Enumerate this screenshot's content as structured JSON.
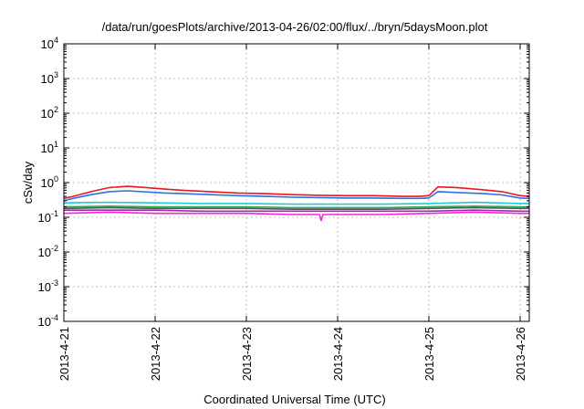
{
  "chart_data": {
    "type": "line",
    "title": "/data/run/goesPlots/archive/2013-04-26/02:00/flux/../bryn/5daysMoon.plot",
    "xlabel": "Coordinated Universal Time (UTC)",
    "ylabel": "cSv/day",
    "yscale": "log",
    "ylim": [
      0.0001,
      10000
    ],
    "xlim_days": [
      0,
      5.1
    ],
    "grid": true,
    "yticks": [
      {
        "value": 0.0001,
        "base": "10",
        "exp": "-4"
      },
      {
        "value": 0.001,
        "base": "10",
        "exp": "-3"
      },
      {
        "value": 0.01,
        "base": "10",
        "exp": "-2"
      },
      {
        "value": 0.1,
        "base": "10",
        "exp": "-1"
      },
      {
        "value": 1,
        "base": "10",
        "exp": "0"
      },
      {
        "value": 10,
        "base": "10",
        "exp": "1"
      },
      {
        "value": 100,
        "base": "10",
        "exp": "2"
      },
      {
        "value": 1000,
        "base": "10",
        "exp": "3"
      },
      {
        "value": 10000,
        "base": "10",
        "exp": "4"
      }
    ],
    "xticks": [
      {
        "day": 0,
        "label": "2013-4-21"
      },
      {
        "day": 1,
        "label": "2013-4-22"
      },
      {
        "day": 2,
        "label": "2013-4-23"
      },
      {
        "day": 3,
        "label": "2013-4-24"
      },
      {
        "day": 4,
        "label": "2013-4-25"
      },
      {
        "day": 5,
        "label": "2013-4-26"
      }
    ],
    "series": [
      {
        "color": "#e8191c",
        "x": [
          0,
          0.1,
          0.3,
          0.5,
          0.7,
          0.9,
          1.1,
          1.3,
          1.6,
          1.9,
          2.2,
          2.5,
          2.8,
          3.1,
          3.4,
          3.7,
          3.9,
          4.0,
          4.1,
          4.3,
          4.6,
          4.8,
          5.0,
          5.1
        ],
        "y": [
          0.35,
          0.4,
          0.55,
          0.72,
          0.78,
          0.72,
          0.65,
          0.6,
          0.55,
          0.5,
          0.48,
          0.45,
          0.43,
          0.42,
          0.42,
          0.4,
          0.4,
          0.42,
          0.75,
          0.72,
          0.62,
          0.55,
          0.42,
          0.4
        ]
      },
      {
        "color": "#2c6fe8",
        "x": [
          0,
          0.1,
          0.3,
          0.5,
          0.7,
          0.9,
          1.1,
          1.3,
          1.6,
          1.9,
          2.2,
          2.5,
          2.8,
          3.1,
          3.4,
          3.7,
          3.9,
          4.0,
          4.1,
          4.3,
          4.6,
          4.8,
          5.0,
          5.1
        ],
        "y": [
          0.3,
          0.35,
          0.45,
          0.55,
          0.58,
          0.54,
          0.5,
          0.48,
          0.45,
          0.42,
          0.4,
          0.38,
          0.37,
          0.36,
          0.36,
          0.35,
          0.35,
          0.36,
          0.55,
          0.52,
          0.48,
          0.44,
          0.36,
          0.35
        ]
      },
      {
        "color": "#1ec9d8",
        "x": [
          0,
          0.5,
          1.0,
          1.5,
          2.0,
          2.5,
          3.0,
          3.5,
          4.0,
          4.5,
          5.0,
          5.1
        ],
        "y": [
          0.26,
          0.27,
          0.26,
          0.25,
          0.25,
          0.24,
          0.24,
          0.24,
          0.25,
          0.27,
          0.25,
          0.25
        ]
      },
      {
        "color": "#2fa84f",
        "x": [
          0,
          0.5,
          1.0,
          1.5,
          2.0,
          2.5,
          3.0,
          3.5,
          4.0,
          4.5,
          5.0,
          5.1
        ],
        "y": [
          0.2,
          0.21,
          0.2,
          0.2,
          0.2,
          0.19,
          0.19,
          0.19,
          0.2,
          0.21,
          0.2,
          0.2
        ]
      },
      {
        "color": "#555555",
        "x": [
          0,
          0.5,
          1.0,
          1.5,
          2.0,
          2.5,
          3.0,
          3.5,
          4.0,
          4.5,
          5.0,
          5.1
        ],
        "y": [
          0.18,
          0.19,
          0.18,
          0.18,
          0.18,
          0.17,
          0.17,
          0.17,
          0.18,
          0.19,
          0.18,
          0.18
        ]
      },
      {
        "color": "#9b2fb0",
        "x": [
          0,
          0.5,
          1.0,
          1.5,
          2.0,
          2.5,
          3.0,
          3.5,
          4.0,
          4.5,
          5.0,
          5.1
        ],
        "y": [
          0.16,
          0.16,
          0.16,
          0.15,
          0.15,
          0.15,
          0.15,
          0.15,
          0.15,
          0.16,
          0.15,
          0.15
        ]
      },
      {
        "color": "#ff1fd6",
        "x": [
          0,
          0.5,
          1.0,
          1.5,
          2.0,
          2.5,
          2.8,
          2.82,
          2.84,
          3.0,
          3.5,
          4.0,
          4.5,
          5.0,
          5.1
        ],
        "y": [
          0.13,
          0.14,
          0.13,
          0.13,
          0.13,
          0.12,
          0.12,
          0.08,
          0.12,
          0.12,
          0.12,
          0.13,
          0.14,
          0.13,
          0.13
        ]
      }
    ]
  }
}
